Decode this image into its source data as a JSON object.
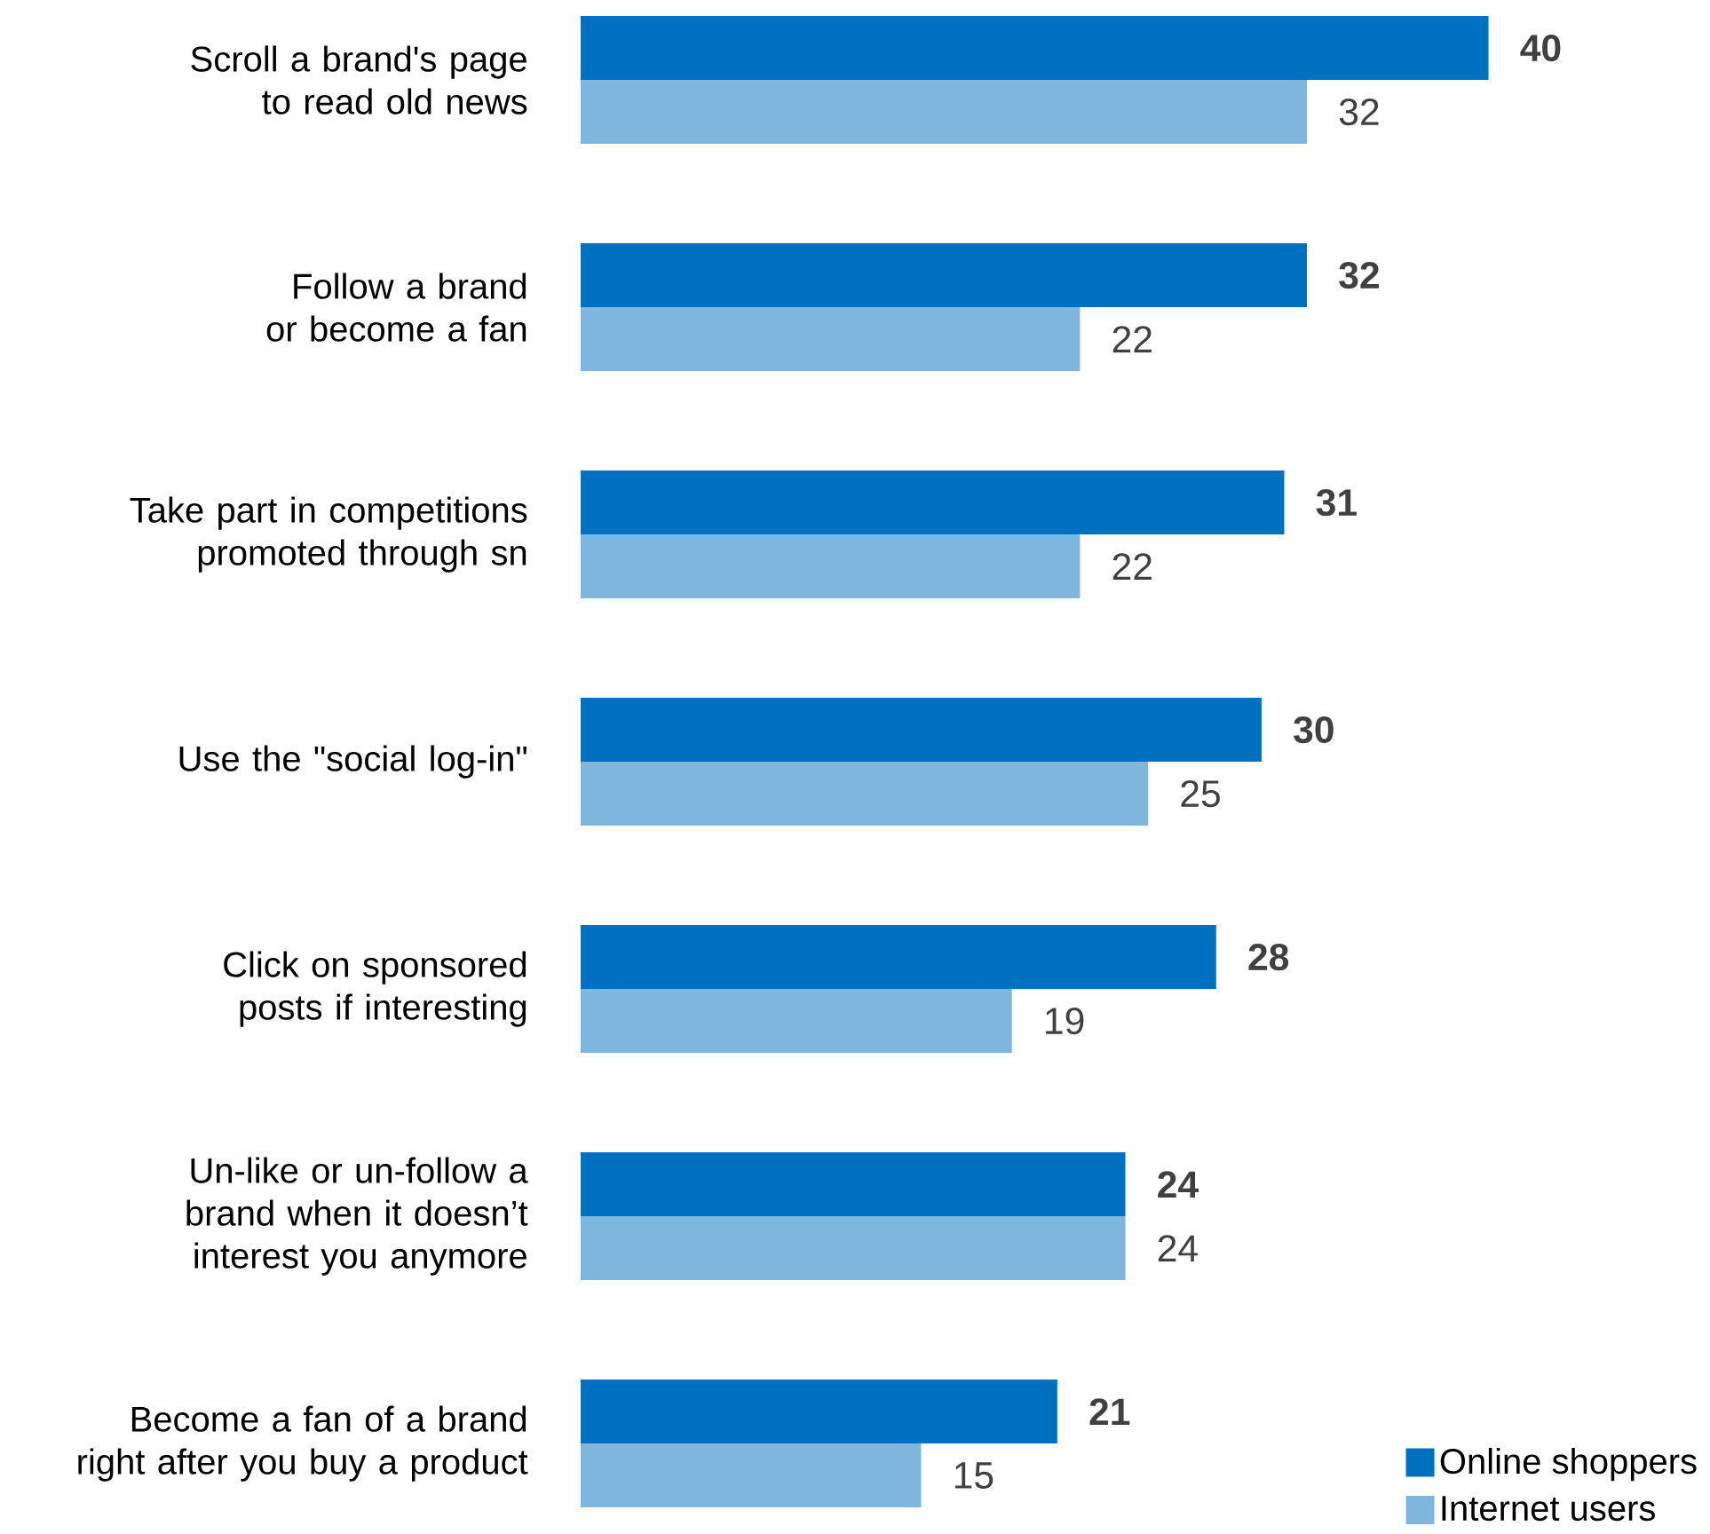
{
  "chart_data": {
    "type": "bar",
    "orientation": "horizontal",
    "data_labels": true,
    "legend": "bottom right",
    "categories": [
      "Scroll a brand's page to read old news",
      "Follow a brand or become a fan",
      "Take part in competitions promoted through sn",
      "Use the \"social log-in\"",
      "Click on sponsored posts if interesting",
      "Un-like or un-follow a brand when it doesn’t interest you anymore",
      "Become a fan of a brand right after you buy a product"
    ],
    "series": [
      {
        "name": "Online shoppers",
        "color": "#0070c0",
        "values": [
          40,
          32,
          31,
          30,
          28,
          24,
          21
        ]
      },
      {
        "name": "Internet users",
        "color": "#7fb6dd",
        "values": [
          32,
          22,
          22,
          25,
          19,
          24,
          15
        ]
      }
    ]
  }
}
